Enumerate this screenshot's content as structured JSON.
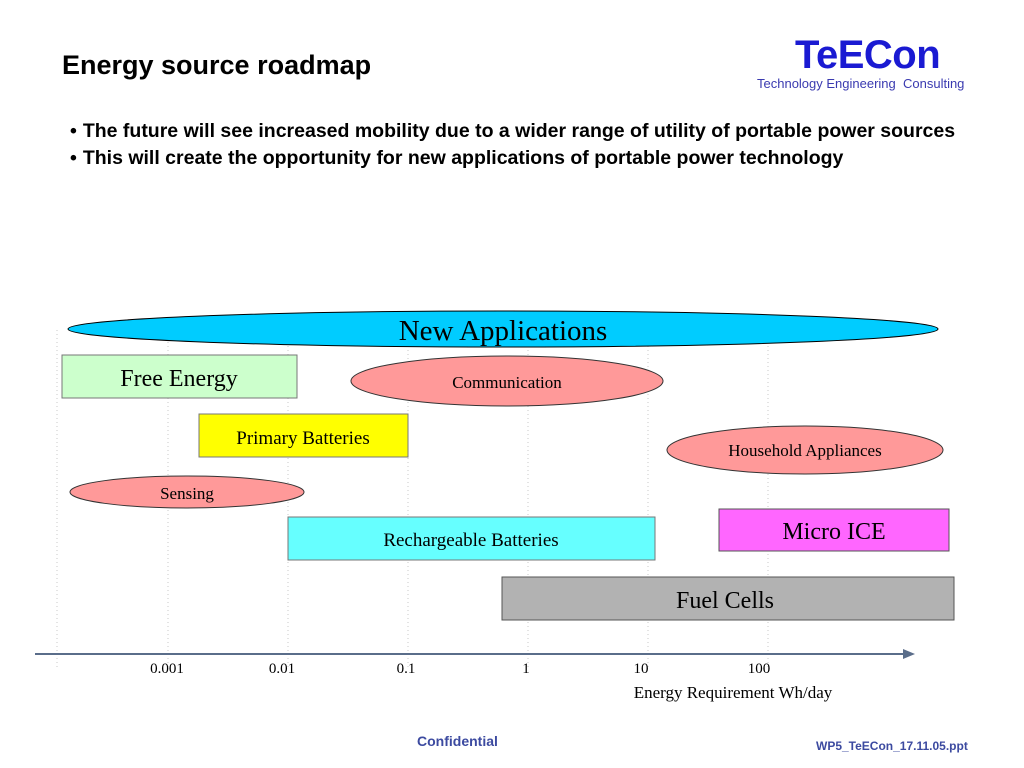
{
  "header": {
    "title": "Energy source roadmap",
    "logo": "TeECon",
    "logo_subtitle": "Technology Engineering  Consulting"
  },
  "bullets": [
    "The future will see increased mobility due to a wider range of utility of portable power sources",
    "This will create the opportunity for new applications of portable power technology"
  ],
  "diagram": {
    "banner": "New Applications",
    "technologies": [
      {
        "label": "Free Energy",
        "color": "#ccffcc"
      },
      {
        "label": "Primary Batteries",
        "color": "#ffff00"
      },
      {
        "label": "Rechargeable Batteries",
        "color": "#66ffff"
      },
      {
        "label": "Micro ICE",
        "color": "#ff66ff"
      },
      {
        "label": "Fuel Cells",
        "color": "#b2b2b2"
      }
    ],
    "applications": [
      {
        "label": "Communication",
        "color": "#ff9999"
      },
      {
        "label": "Household Appliances",
        "color": "#ff9999"
      },
      {
        "label": "Sensing",
        "color": "#ff9999"
      }
    ],
    "banner_color": "#00ccff",
    "axis": {
      "ticks": [
        "0.001",
        "0.01",
        "0.1",
        "1",
        "10",
        "100"
      ],
      "label": "Energy Requirement Wh/day"
    }
  },
  "footer": {
    "confidential": "Confidential",
    "filename": "WP5_TeECon_17.11.05.ppt"
  }
}
